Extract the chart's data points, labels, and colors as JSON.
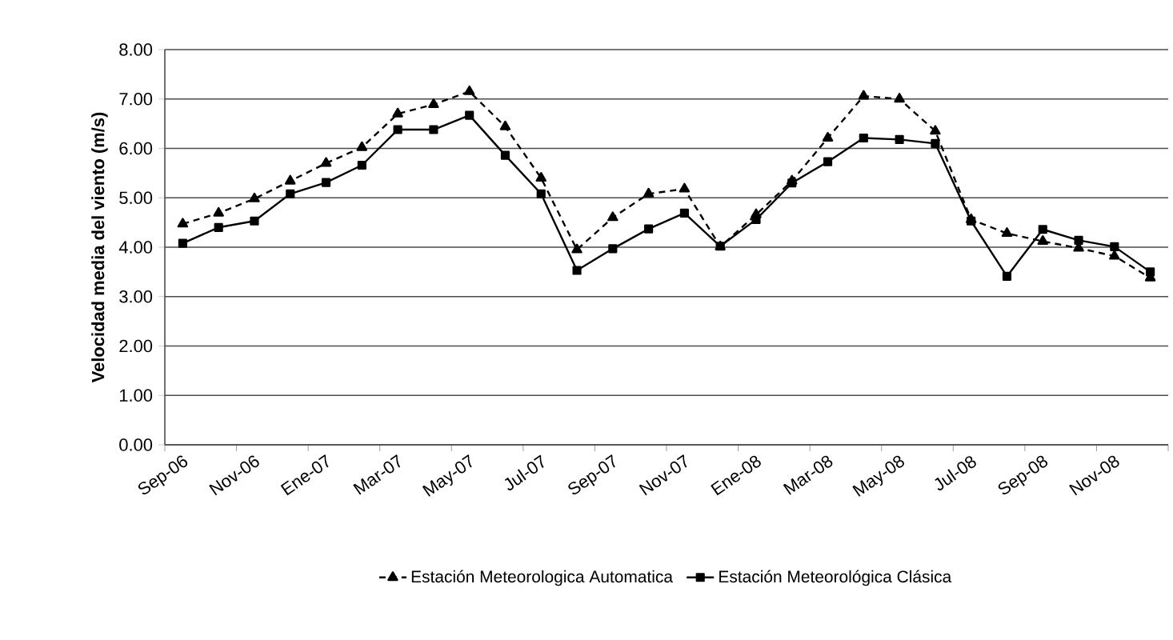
{
  "chart_data": {
    "type": "line",
    "ylabel": "Velocidad media del viento (m/s)",
    "categories": [
      "Sep-06",
      null,
      "Nov-06",
      null,
      "Ene-07",
      null,
      "Mar-07",
      null,
      "May-07",
      null,
      "Jul-07",
      null,
      "Sep-07",
      null,
      "Nov-07",
      null,
      "Ene-08",
      null,
      "Mar-08",
      null,
      "May-08",
      null,
      "Jul-08",
      null,
      "Sep-08",
      null,
      "Nov-08",
      null
    ],
    "series": [
      {
        "name": "Estación Meteorologica Automatica",
        "color": "#000000",
        "marker": "triangle",
        "line_style": "dashed",
        "values": [
          4.47,
          4.69,
          4.98,
          5.34,
          5.7,
          6.02,
          6.7,
          6.89,
          7.15,
          6.44,
          5.4,
          3.95,
          4.6,
          5.08,
          5.18,
          4.01,
          4.66,
          5.34,
          6.21,
          7.06,
          7.0,
          6.35,
          4.56,
          4.28,
          4.12,
          3.98,
          3.82,
          3.38
        ]
      },
      {
        "name": "Estación Meteorológica Clásica",
        "color": "#000000",
        "marker": "square",
        "line_style": "solid",
        "values": [
          4.08,
          4.4,
          4.53,
          5.08,
          5.31,
          5.66,
          6.38,
          6.38,
          6.67,
          5.86,
          5.08,
          3.53,
          3.97,
          4.37,
          4.69,
          4.02,
          4.56,
          5.3,
          5.73,
          6.21,
          6.18,
          6.1,
          4.53,
          3.41,
          4.36,
          4.14,
          4.01,
          3.5
        ]
      }
    ],
    "ylim": [
      0,
      8
    ],
    "yticks": [
      {
        "value": 0,
        "label": "0.00"
      },
      {
        "value": 1,
        "label": "1.00"
      },
      {
        "value": 2,
        "label": "2.00"
      },
      {
        "value": 3,
        "label": "3.00"
      },
      {
        "value": 4,
        "label": "4.00"
      },
      {
        "value": 5,
        "label": "5.00"
      },
      {
        "value": 6,
        "label": "6.00"
      },
      {
        "value": 7,
        "label": "7.00"
      },
      {
        "value": 8,
        "label": "8.00"
      }
    ],
    "grid": "y",
    "legend": "bottom"
  }
}
